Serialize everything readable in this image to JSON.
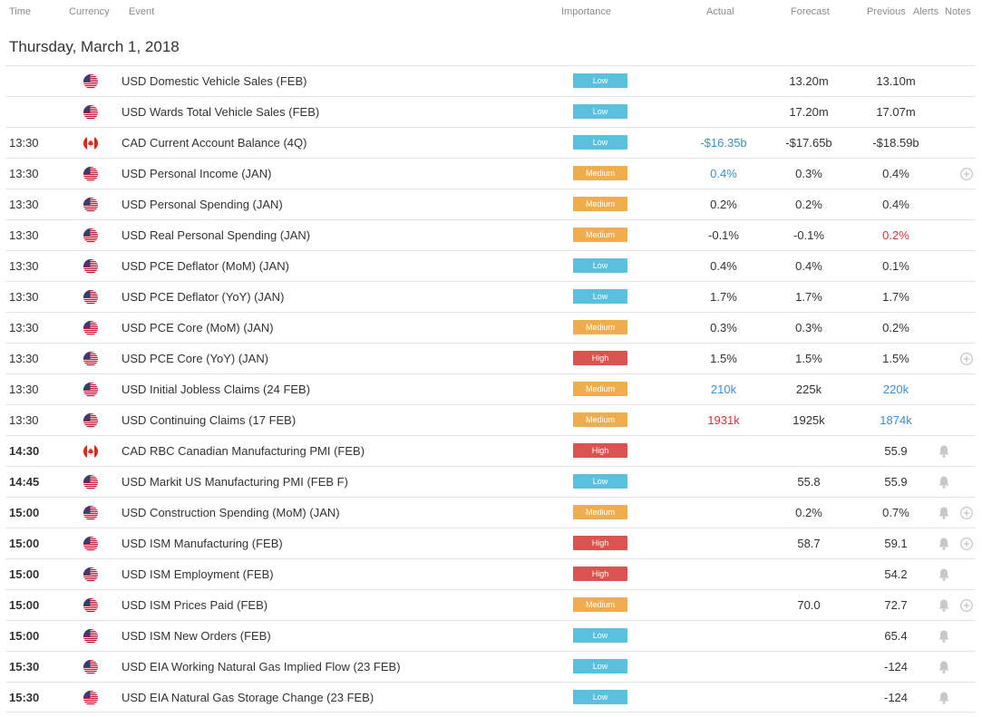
{
  "colors": {
    "low": "#5bc0de",
    "medium": "#f0ad4e",
    "high": "#d9534f",
    "positive": "#3a8fd8",
    "negative": "#e0303a",
    "neutral": "#333333"
  },
  "header": {
    "time": "Time",
    "currency": "Currency",
    "event": "Event",
    "importance": "Importance",
    "actual": "Actual",
    "forecast": "Forecast",
    "previous": "Previous",
    "alerts": "Alerts",
    "notes": "Notes"
  },
  "day": {
    "title": "Thursday, March 1, 2018"
  },
  "rows": [
    {
      "time": "",
      "bold": false,
      "flag": "us",
      "event": "USD Domestic Vehicle Sales (FEB)",
      "importance": "Low",
      "actual": "",
      "actual_color": "neutral",
      "forecast": "13.20m",
      "previous": "13.10m",
      "previous_color": "neutral",
      "alert": false,
      "notes": false
    },
    {
      "time": "",
      "bold": false,
      "flag": "us",
      "event": "USD Wards Total Vehicle Sales (FEB)",
      "importance": "Low",
      "actual": "",
      "actual_color": "neutral",
      "forecast": "17.20m",
      "previous": "17.07m",
      "previous_color": "neutral",
      "alert": false,
      "notes": false
    },
    {
      "time": "13:30",
      "bold": false,
      "flag": "ca",
      "event": "CAD Current Account Balance (4Q)",
      "importance": "Low",
      "actual": "-$16.35b",
      "actual_color": "positive",
      "forecast": "-$17.65b",
      "previous": "-$18.59b",
      "previous_color": "neutral",
      "alert": false,
      "notes": false
    },
    {
      "time": "13:30",
      "bold": false,
      "flag": "us",
      "event": "USD Personal Income (JAN)",
      "importance": "Medium",
      "actual": "0.4%",
      "actual_color": "positive",
      "forecast": "0.3%",
      "previous": "0.4%",
      "previous_color": "neutral",
      "alert": false,
      "notes": true
    },
    {
      "time": "13:30",
      "bold": false,
      "flag": "us",
      "event": "USD Personal Spending (JAN)",
      "importance": "Medium",
      "actual": "0.2%",
      "actual_color": "neutral",
      "forecast": "0.2%",
      "previous": "0.4%",
      "previous_color": "neutral",
      "alert": false,
      "notes": false
    },
    {
      "time": "13:30",
      "bold": false,
      "flag": "us",
      "event": "USD Real Personal Spending (JAN)",
      "importance": "Medium",
      "actual": "-0.1%",
      "actual_color": "neutral",
      "forecast": "-0.1%",
      "previous": "0.2%",
      "previous_color": "negative",
      "alert": false,
      "notes": false
    },
    {
      "time": "13:30",
      "bold": false,
      "flag": "us",
      "event": "USD PCE Deflator (MoM) (JAN)",
      "importance": "Low",
      "actual": "0.4%",
      "actual_color": "neutral",
      "forecast": "0.4%",
      "previous": "0.1%",
      "previous_color": "neutral",
      "alert": false,
      "notes": false
    },
    {
      "time": "13:30",
      "bold": false,
      "flag": "us",
      "event": "USD PCE Deflator (YoY) (JAN)",
      "importance": "Low",
      "actual": "1.7%",
      "actual_color": "neutral",
      "forecast": "1.7%",
      "previous": "1.7%",
      "previous_color": "neutral",
      "alert": false,
      "notes": false
    },
    {
      "time": "13:30",
      "bold": false,
      "flag": "us",
      "event": "USD PCE Core (MoM) (JAN)",
      "importance": "Medium",
      "actual": "0.3%",
      "actual_color": "neutral",
      "forecast": "0.3%",
      "previous": "0.2%",
      "previous_color": "neutral",
      "alert": false,
      "notes": false
    },
    {
      "time": "13:30",
      "bold": false,
      "flag": "us",
      "event": "USD PCE Core (YoY) (JAN)",
      "importance": "High",
      "actual": "1.5%",
      "actual_color": "neutral",
      "forecast": "1.5%",
      "previous": "1.5%",
      "previous_color": "neutral",
      "alert": false,
      "notes": true
    },
    {
      "time": "13:30",
      "bold": false,
      "flag": "us",
      "event": "USD Initial Jobless Claims (24 FEB)",
      "importance": "Medium",
      "actual": "210k",
      "actual_color": "positive",
      "forecast": "225k",
      "previous": "220k",
      "previous_color": "positive",
      "alert": false,
      "notes": false
    },
    {
      "time": "13:30",
      "bold": false,
      "flag": "us",
      "event": "USD Continuing Claims (17 FEB)",
      "importance": "Medium",
      "actual": "1931k",
      "actual_color": "negative",
      "forecast": "1925k",
      "previous": "1874k",
      "previous_color": "positive",
      "alert": false,
      "notes": false
    },
    {
      "time": "14:30",
      "bold": true,
      "flag": "ca",
      "event": "CAD RBC Canadian Manufacturing PMI (FEB)",
      "importance": "High",
      "actual": "",
      "actual_color": "neutral",
      "forecast": "",
      "previous": "55.9",
      "previous_color": "neutral",
      "alert": true,
      "notes": false
    },
    {
      "time": "14:45",
      "bold": true,
      "flag": "us",
      "event": "USD Markit US Manufacturing PMI (FEB F)",
      "importance": "Low",
      "actual": "",
      "actual_color": "neutral",
      "forecast": "55.8",
      "previous": "55.9",
      "previous_color": "neutral",
      "alert": true,
      "notes": false
    },
    {
      "time": "15:00",
      "bold": true,
      "flag": "us",
      "event": "USD Construction Spending (MoM) (JAN)",
      "importance": "Medium",
      "actual": "",
      "actual_color": "neutral",
      "forecast": "0.2%",
      "previous": "0.7%",
      "previous_color": "neutral",
      "alert": true,
      "notes": true
    },
    {
      "time": "15:00",
      "bold": true,
      "flag": "us",
      "event": "USD ISM Manufacturing (FEB)",
      "importance": "High",
      "actual": "",
      "actual_color": "neutral",
      "forecast": "58.7",
      "previous": "59.1",
      "previous_color": "neutral",
      "alert": true,
      "notes": true
    },
    {
      "time": "15:00",
      "bold": true,
      "flag": "us",
      "event": "USD ISM Employment (FEB)",
      "importance": "High",
      "actual": "",
      "actual_color": "neutral",
      "forecast": "",
      "previous": "54.2",
      "previous_color": "neutral",
      "alert": true,
      "notes": false
    },
    {
      "time": "15:00",
      "bold": true,
      "flag": "us",
      "event": "USD ISM Prices Paid (FEB)",
      "importance": "Medium",
      "actual": "",
      "actual_color": "neutral",
      "forecast": "70.0",
      "previous": "72.7",
      "previous_color": "neutral",
      "alert": true,
      "notes": true
    },
    {
      "time": "15:00",
      "bold": true,
      "flag": "us",
      "event": "USD ISM New Orders (FEB)",
      "importance": "Low",
      "actual": "",
      "actual_color": "neutral",
      "forecast": "",
      "previous": "65.4",
      "previous_color": "neutral",
      "alert": true,
      "notes": false
    },
    {
      "time": "15:30",
      "bold": true,
      "flag": "us",
      "event": "USD EIA Working Natural Gas Implied Flow (23 FEB)",
      "importance": "Low",
      "actual": "",
      "actual_color": "neutral",
      "forecast": "",
      "previous": "-124",
      "previous_color": "neutral",
      "alert": true,
      "notes": false
    },
    {
      "time": "15:30",
      "bold": true,
      "flag": "us",
      "event": "USD EIA Natural Gas Storage Change (23 FEB)",
      "importance": "Low",
      "actual": "",
      "actual_color": "neutral",
      "forecast": "",
      "previous": "-124",
      "previous_color": "neutral",
      "alert": true,
      "notes": false
    }
  ]
}
